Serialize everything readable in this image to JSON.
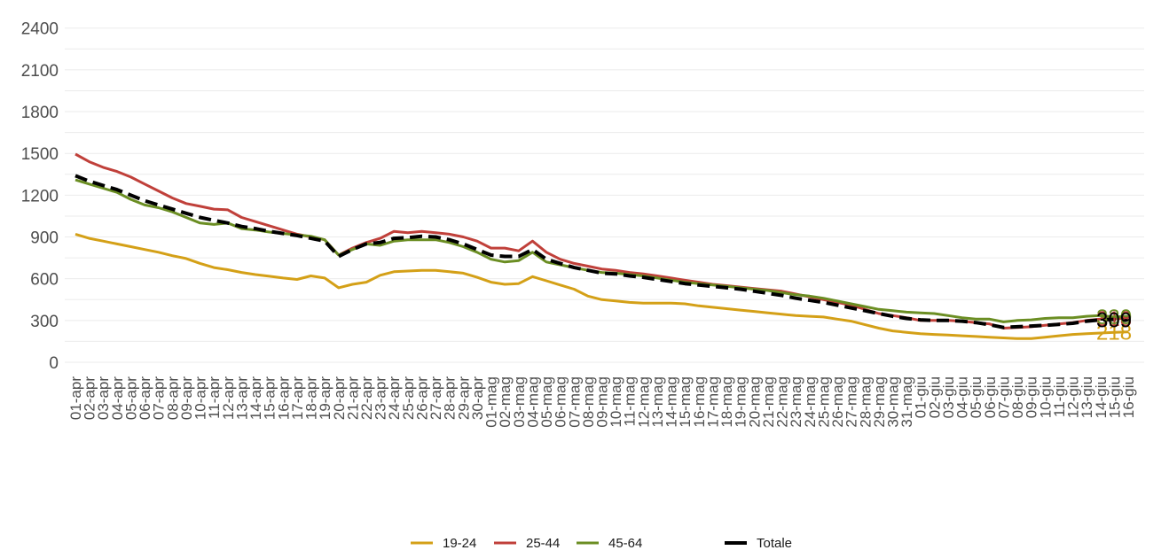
{
  "chart_data": {
    "type": "line",
    "title": "",
    "xlabel": "",
    "ylabel": "",
    "ylim": [
      0,
      2500
    ],
    "yticks": [
      0,
      300,
      600,
      900,
      1200,
      1500,
      1800,
      2100,
      2400
    ],
    "grid": true,
    "legend_position": "bottom",
    "x": [
      "01-apr",
      "02-apr",
      "03-apr",
      "04-apr",
      "05-apr",
      "06-apr",
      "07-apr",
      "08-apr",
      "09-apr",
      "10-apr",
      "11-apr",
      "12-apr",
      "13-apr",
      "14-apr",
      "15-apr",
      "16-apr",
      "17-apr",
      "18-apr",
      "19-apr",
      "20-apr",
      "21-apr",
      "22-apr",
      "23-apr",
      "24-apr",
      "25-apr",
      "26-apr",
      "27-apr",
      "28-apr",
      "29-apr",
      "30-apr",
      "01-mag",
      "02-mag",
      "03-mag",
      "04-mag",
      "05-mag",
      "06-mag",
      "07-mag",
      "08-mag",
      "09-mag",
      "10-mag",
      "11-mag",
      "12-mag",
      "13-mag",
      "14-mag",
      "15-mag",
      "16-mag",
      "17-mag",
      "18-mag",
      "19-mag",
      "20-mag",
      "21-mag",
      "22-mag",
      "23-mag",
      "24-mag",
      "25-mag",
      "26-mag",
      "27-mag",
      "28-mag",
      "29-mag",
      "30-mag",
      "31-mag",
      "01-giu",
      "02-giu",
      "03-giu",
      "04-giu",
      "05-giu",
      "06-giu",
      "07-giu",
      "08-giu",
      "09-giu",
      "10-giu",
      "11-giu",
      "12-giu",
      "13-giu",
      "14-giu",
      "15-giu",
      "16-giu"
    ],
    "series": [
      {
        "name": "19-24",
        "color": "#d4a017",
        "values": [
          920,
          890,
          870,
          850,
          830,
          810,
          790,
          765,
          745,
          710,
          680,
          665,
          645,
          630,
          618,
          605,
          595,
          620,
          605,
          535,
          560,
          575,
          625,
          650,
          655,
          660,
          660,
          650,
          640,
          610,
          575,
          560,
          565,
          615,
          585,
          555,
          525,
          475,
          450,
          440,
          430,
          425,
          425,
          425,
          420,
          405,
          395,
          385,
          375,
          365,
          355,
          345,
          335,
          330,
          325,
          310,
          295,
          270,
          245,
          225,
          215,
          205,
          200,
          195,
          190,
          185,
          180,
          175,
          170,
          170,
          180,
          190,
          200,
          205,
          210,
          215,
          218
        ],
        "end_label": "218"
      },
      {
        "name": "25-44",
        "color": "#c0403a",
        "values": [
          1495,
          1440,
          1400,
          1370,
          1330,
          1280,
          1230,
          1180,
          1140,
          1120,
          1100,
          1095,
          1040,
          1010,
          980,
          950,
          920,
          900,
          880,
          770,
          820,
          860,
          890,
          940,
          930,
          940,
          930,
          920,
          900,
          870,
          820,
          820,
          800,
          870,
          790,
          740,
          710,
          690,
          670,
          660,
          645,
          635,
          620,
          605,
          590,
          575,
          560,
          550,
          540,
          530,
          520,
          510,
          490,
          470,
          450,
          430,
          410,
          380,
          350,
          335,
          320,
          300,
          300,
          300,
          295,
          285,
          275,
          245,
          250,
          255,
          265,
          275,
          285,
          300,
          310,
          312,
          318
        ],
        "end_label": "318"
      },
      {
        "name": "45-64",
        "color": "#6b8e23",
        "values": [
          1310,
          1280,
          1250,
          1220,
          1170,
          1130,
          1110,
          1080,
          1040,
          1000,
          990,
          1000,
          960,
          950,
          935,
          925,
          915,
          905,
          880,
          770,
          810,
          850,
          840,
          870,
          880,
          880,
          880,
          860,
          830,
          790,
          740,
          720,
          730,
          790,
          720,
          700,
          680,
          660,
          645,
          640,
          630,
          620,
          605,
          590,
          575,
          565,
          555,
          545,
          535,
          525,
          515,
          500,
          485,
          475,
          460,
          440,
          420,
          400,
          380,
          370,
          360,
          355,
          350,
          335,
          320,
          310,
          310,
          290,
          300,
          305,
          315,
          320,
          320,
          330,
          335,
          325,
          330
        ],
        "end_label": "330"
      },
      {
        "name": "Totale",
        "color": "#000000",
        "values": [
          1340,
          1300,
          1270,
          1240,
          1200,
          1160,
          1130,
          1100,
          1070,
          1040,
          1020,
          1000,
          975,
          960,
          940,
          925,
          910,
          890,
          870,
          760,
          810,
          850,
          860,
          890,
          895,
          905,
          900,
          880,
          850,
          810,
          770,
          760,
          760,
          810,
          740,
          710,
          680,
          660,
          640,
          635,
          620,
          610,
          595,
          580,
          565,
          555,
          545,
          535,
          525,
          510,
          495,
          480,
          460,
          445,
          430,
          410,
          390,
          370,
          350,
          330,
          315,
          305,
          300,
          300,
          295,
          285,
          270,
          250,
          255,
          260,
          265,
          272,
          280,
          295,
          305,
          308,
          309
        ],
        "end_label": "309"
      }
    ]
  },
  "legend": {
    "items": [
      {
        "label": "19-24",
        "color": "#d4a017"
      },
      {
        "label": "25-44",
        "color": "#c0403a"
      },
      {
        "label": "45-64",
        "color": "#6b8e23"
      },
      {
        "label": "Totale",
        "color": "#000000"
      }
    ]
  }
}
